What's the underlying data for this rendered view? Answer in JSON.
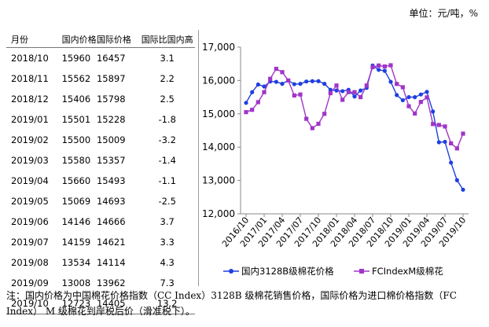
{
  "unit_label": "单位：元/吨，%",
  "table": {
    "headers": [
      "月份",
      "国内价格",
      "国际价格",
      "国际比国内高"
    ],
    "rows": [
      [
        "2018/10",
        "15960",
        "16457",
        "3.1"
      ],
      [
        "2018/11",
        "15562",
        "15897",
        "2.2"
      ],
      [
        "2018/12",
        "15406",
        "15798",
        "2.5"
      ],
      [
        "2019/01",
        "15501",
        "15228",
        "-1.8"
      ],
      [
        "2019/02",
        "15500",
        "15009",
        "-3.2"
      ],
      [
        "2019/03",
        "15580",
        "15357",
        "-1.4"
      ],
      [
        "2019/04",
        "15660",
        "15493",
        "-1.1"
      ],
      [
        "2019/05",
        "15069",
        "14693",
        "-2.5"
      ],
      [
        "2019/06",
        "14146",
        "14666",
        "3.7"
      ],
      [
        "2019/07",
        "14159",
        "14621",
        "3.3"
      ],
      [
        "2019/08",
        "13534",
        "14114",
        "4.3"
      ],
      [
        "2019/09",
        "13008",
        "13962",
        "7.3"
      ],
      [
        "2019/10",
        "12723",
        "14405",
        "13.2"
      ]
    ]
  },
  "chart_data": {
    "type": "line",
    "ylim": [
      12000,
      17000
    ],
    "yticks": [
      12000,
      13000,
      14000,
      15000,
      16000,
      17000
    ],
    "ytick_labels": [
      "12,000",
      "13,000",
      "14,000",
      "15,000",
      "16,000",
      "17,000"
    ],
    "xtick_labels": [
      "2016/10",
      "2017/01",
      "2017/04",
      "2017/07",
      "2017/10",
      "2018/01",
      "2018/04",
      "2018/07",
      "2018/10",
      "2019/01",
      "2019/04",
      "2019/07",
      "2019/10"
    ],
    "x": [
      "2016/10",
      "2016/11",
      "2016/12",
      "2017/01",
      "2017/02",
      "2017/03",
      "2017/04",
      "2017/05",
      "2017/06",
      "2017/07",
      "2017/08",
      "2017/09",
      "2017/10",
      "2017/11",
      "2017/12",
      "2018/01",
      "2018/02",
      "2018/03",
      "2018/04",
      "2018/05",
      "2018/06",
      "2018/07",
      "2018/08",
      "2018/09",
      "2018/10",
      "2018/11",
      "2018/12",
      "2019/01",
      "2019/02",
      "2019/03",
      "2019/04",
      "2019/05",
      "2019/06",
      "2019/07",
      "2019/08",
      "2019/09",
      "2019/10"
    ],
    "series": [
      {
        "name": "国内3128B级棉花价格",
        "color": "#1f3fe0",
        "marker": "circle",
        "values": [
          15330,
          15650,
          15880,
          15820,
          15970,
          15960,
          15900,
          16000,
          15890,
          15900,
          15970,
          15980,
          15980,
          15900,
          15720,
          15700,
          15680,
          15720,
          15520,
          15700,
          15780,
          16450,
          16320,
          16290,
          15960,
          15562,
          15406,
          15501,
          15500,
          15580,
          15660,
          15069,
          14146,
          14159,
          13534,
          13008,
          12723
        ]
      },
      {
        "name": "FCIndexM级棉花",
        "color": "#a035c8",
        "marker": "square",
        "values": [
          15050,
          15120,
          15350,
          15650,
          16050,
          16350,
          16250,
          16000,
          15550,
          15580,
          14850,
          14570,
          14700,
          15000,
          15620,
          15850,
          15420,
          15650,
          15650,
          15500,
          15850,
          16400,
          16450,
          16420,
          16457,
          15897,
          15798,
          15228,
          15009,
          15357,
          15493,
          14693,
          14666,
          14621,
          14114,
          13962,
          14405
        ]
      }
    ],
    "legend_position": "bottom"
  },
  "note": "注：国内价格为中国棉花价格指数（CC Index）3128B 级棉花销售价格，国际价格为进口棉价格指数（FC Index） M 级棉花到岸税后价（滑准税下）。"
}
